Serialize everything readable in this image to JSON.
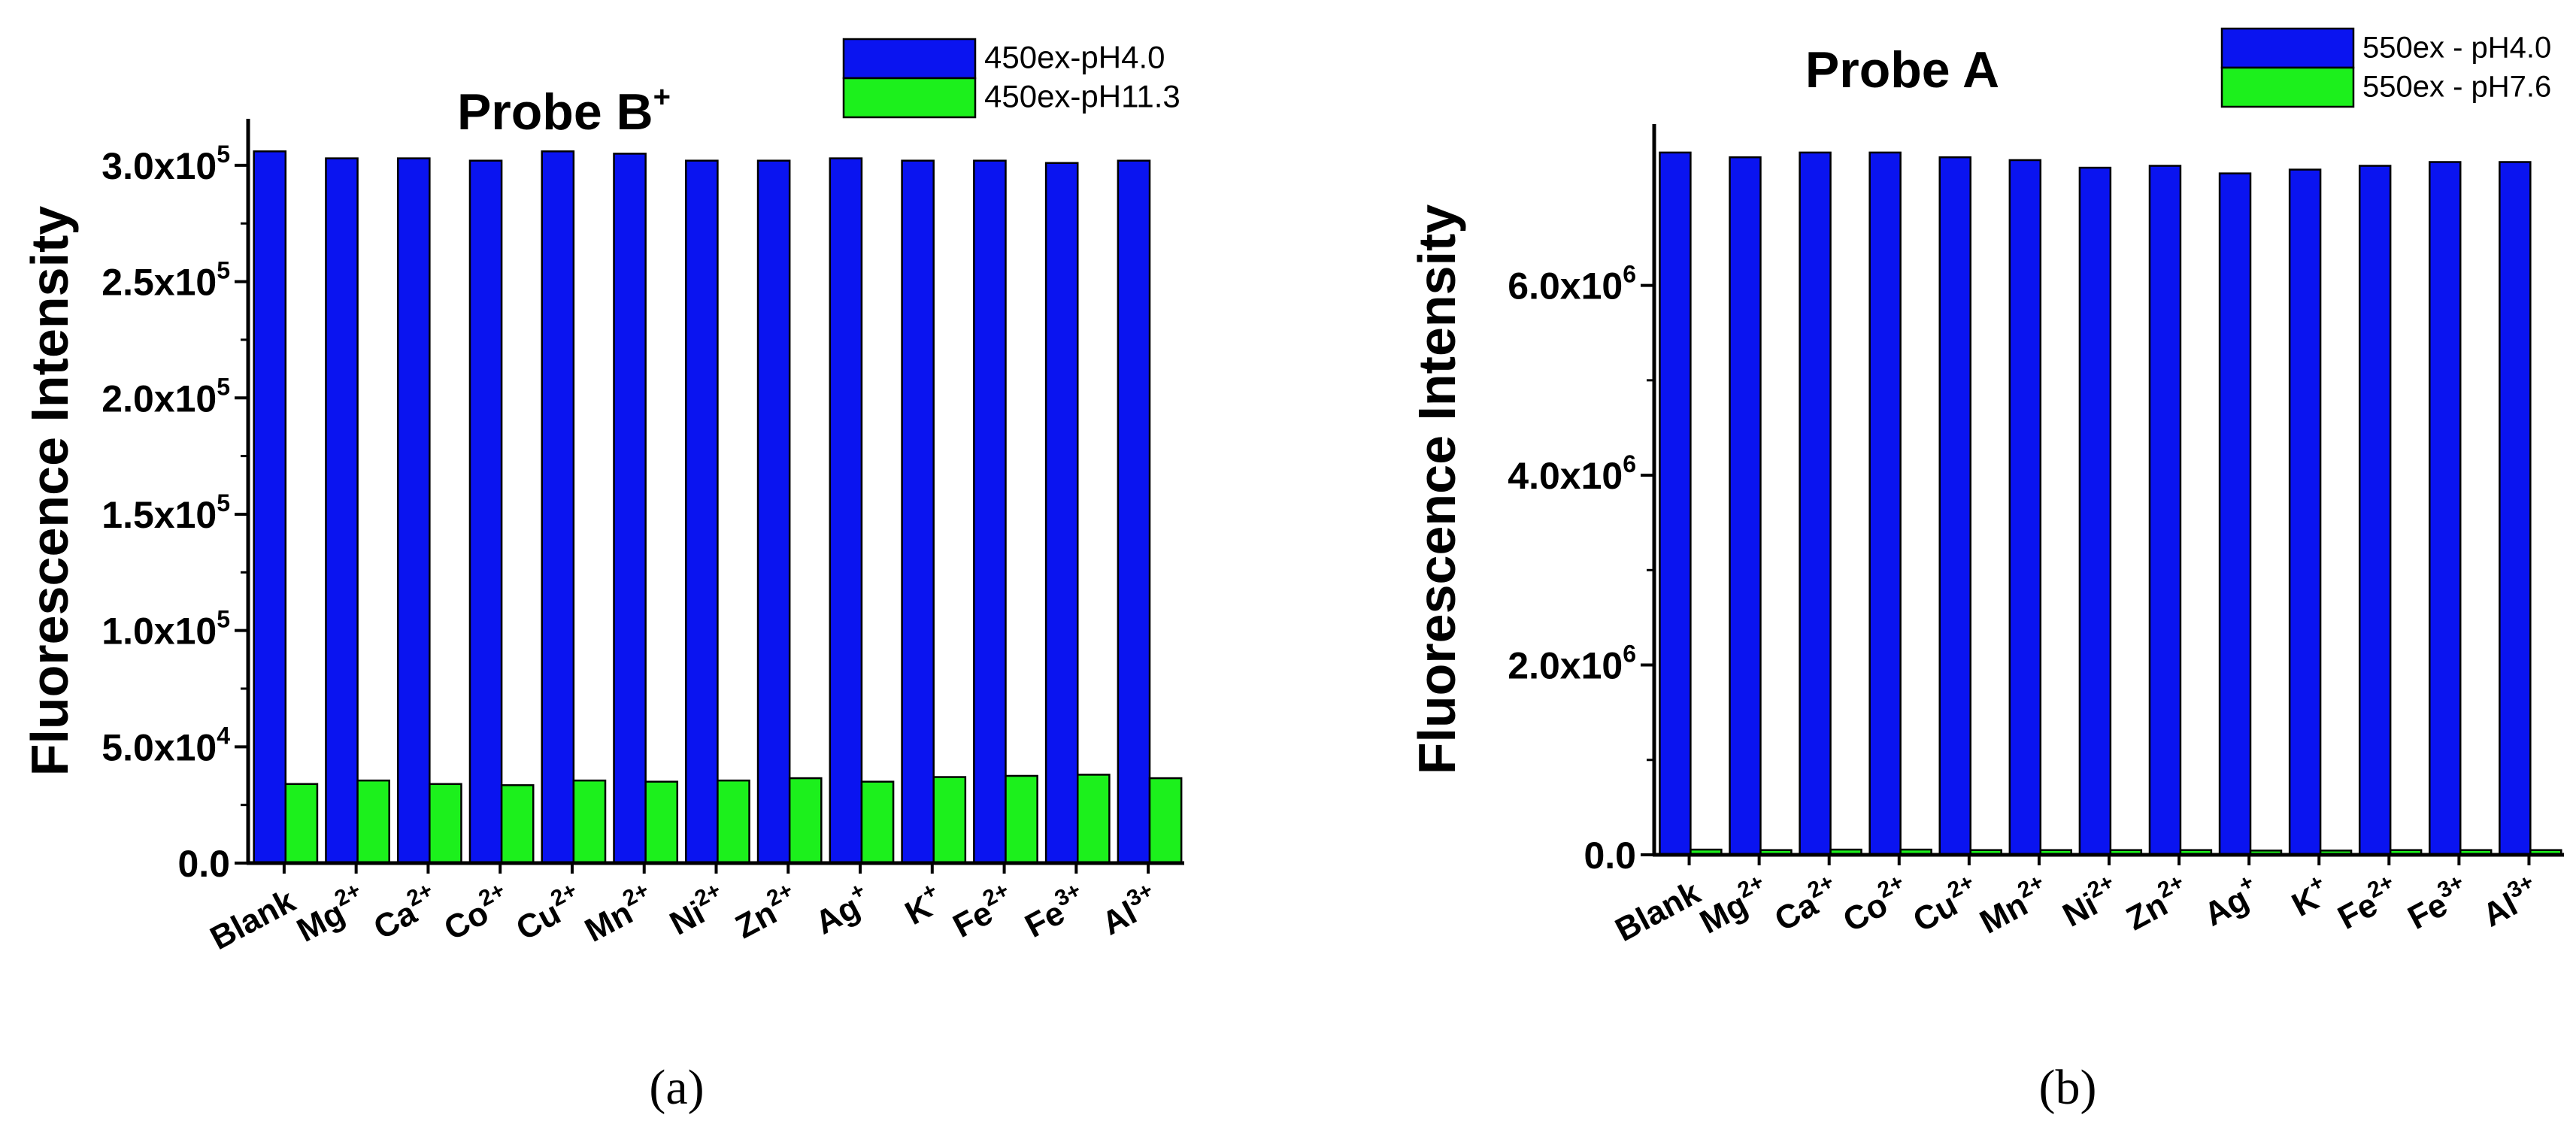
{
  "chart_data": [
    {
      "type": "bar",
      "title": "Probe B",
      "title_superscript": "+",
      "xlabel": "",
      "ylabel": "Fluorescence Intensity",
      "ylim": [
        0,
        320000
      ],
      "y_ticks": [
        {
          "value": 0,
          "label": "0.0"
        },
        {
          "value": 50000,
          "label": "5.0x10",
          "exp": "4"
        },
        {
          "value": 100000,
          "label": "1.0x10",
          "exp": "5"
        },
        {
          "value": 150000,
          "label": "1.5x10",
          "exp": "5"
        },
        {
          "value": 200000,
          "label": "2.0x10",
          "exp": "5"
        },
        {
          "value": 250000,
          "label": "2.5x10",
          "exp": "5"
        },
        {
          "value": 300000,
          "label": "3.0x10",
          "exp": "5"
        }
      ],
      "categories": [
        {
          "base": "Blank",
          "sup": ""
        },
        {
          "base": "Mg",
          "sup": "2+"
        },
        {
          "base": "Ca",
          "sup": "2+"
        },
        {
          "base": "Co",
          "sup": "2+"
        },
        {
          "base": "Cu",
          "sup": "2+"
        },
        {
          "base": "Mn",
          "sup": "2+"
        },
        {
          "base": "Ni",
          "sup": "2+"
        },
        {
          "base": "Zn",
          "sup": "2+"
        },
        {
          "base": "Ag",
          "sup": "+"
        },
        {
          "base": "K",
          "sup": "+"
        },
        {
          "base": "Fe",
          "sup": "2+"
        },
        {
          "base": "Fe",
          "sup": "3+"
        },
        {
          "base": "Al",
          "sup": "3+"
        }
      ],
      "series": [
        {
          "name": "450ex-pH4.0",
          "color": "#0a14f0",
          "values": [
            306000,
            303000,
            303000,
            302000,
            306000,
            305000,
            302000,
            302000,
            303000,
            302000,
            302000,
            301000,
            302000
          ]
        },
        {
          "name": "450ex-pH11.3",
          "color": "#1cf01c",
          "values": [
            34000,
            35500,
            34000,
            33500,
            35500,
            35000,
            35500,
            36500,
            35000,
            37000,
            37500,
            38000,
            36500
          ]
        }
      ],
      "legend": "top-right",
      "sub_label": "(a)"
    },
    {
      "type": "bar",
      "title": "Probe A",
      "title_superscript": "",
      "xlabel": "",
      "ylabel": "Fluorescence Intensity",
      "ylim": [
        0,
        7700000
      ],
      "y_ticks": [
        {
          "value": 0,
          "label": "0.0"
        },
        {
          "value": 2000000,
          "label": "2.0x10",
          "exp": "6"
        },
        {
          "value": 4000000,
          "label": "4.0x10",
          "exp": "6"
        },
        {
          "value": 6000000,
          "label": "6.0x10",
          "exp": "6"
        }
      ],
      "categories": [
        {
          "base": "Blank",
          "sup": ""
        },
        {
          "base": "Mg",
          "sup": "2+"
        },
        {
          "base": "Ca",
          "sup": "2+"
        },
        {
          "base": "Co",
          "sup": "2+"
        },
        {
          "base": "Cu",
          "sup": "2+"
        },
        {
          "base": "Mn",
          "sup": "2+"
        },
        {
          "base": "Ni",
          "sup": "2+"
        },
        {
          "base": "Zn",
          "sup": "2+"
        },
        {
          "base": "Ag",
          "sup": "+"
        },
        {
          "base": "K",
          "sup": "+"
        },
        {
          "base": "Fe",
          "sup": "2+"
        },
        {
          "base": "Fe",
          "sup": "3+"
        },
        {
          "base": "Al",
          "sup": "3+"
        }
      ],
      "series": [
        {
          "name": "550ex - pH4.0",
          "color": "#0a14f0",
          "values": [
            7400000,
            7350000,
            7400000,
            7400000,
            7350000,
            7320000,
            7240000,
            7260000,
            7180000,
            7220000,
            7260000,
            7300000,
            7300000
          ]
        },
        {
          "name": "550ex - pH7.6",
          "color": "#1cf01c",
          "values": [
            55000,
            50000,
            55000,
            55000,
            50000,
            50000,
            50000,
            50000,
            45000,
            45000,
            50000,
            50000,
            50000
          ]
        }
      ],
      "legend": "top-right",
      "sub_label": "(b)"
    }
  ]
}
